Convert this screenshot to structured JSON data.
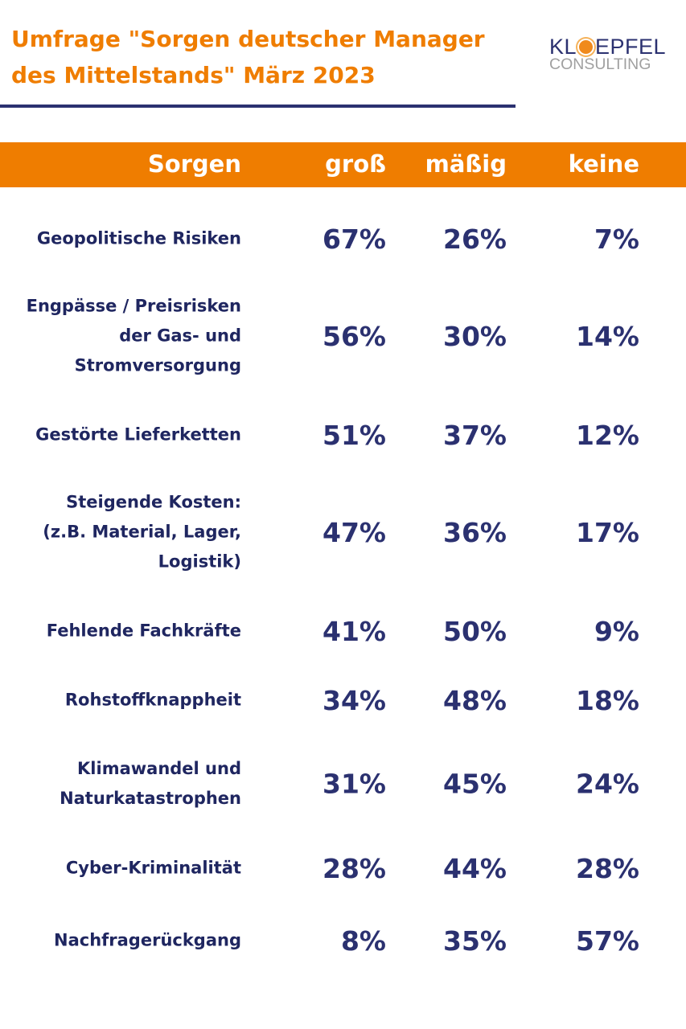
{
  "title": "Umfrage \"Sorgen deutscher Manager des Mittelstands\" März 2023",
  "logo": {
    "line1": "KLOEPFEL",
    "line2": "CONSULTING"
  },
  "colors": {
    "accent": "#ef7d00",
    "navy": "#2b3170"
  },
  "chart_data": {
    "type": "table",
    "columns": [
      "Sorgen",
      "groß",
      "mäßig",
      "keine"
    ],
    "rows": [
      {
        "label": "Geopolitische Risiken",
        "values": [
          "67%",
          "26%",
          "7%"
        ]
      },
      {
        "label": "Engpässe / Preisrisken der Gas- und Stromversorgung",
        "values": [
          "56%",
          "30%",
          "14%"
        ]
      },
      {
        "label": "Gestörte Lieferketten",
        "values": [
          "51%",
          "37%",
          "12%"
        ]
      },
      {
        "label": "Steigende Kosten: (z.B. Material, Lager, Logistik)",
        "values": [
          "47%",
          "36%",
          "17%"
        ]
      },
      {
        "label": "Fehlende Fachkräfte",
        "values": [
          "41%",
          "50%",
          "9%"
        ]
      },
      {
        "label": "Rohstoffknappheit",
        "values": [
          "34%",
          "48%",
          "18%"
        ]
      },
      {
        "label": "Klimawandel und Naturkatastrophen",
        "values": [
          "31%",
          "45%",
          "24%"
        ]
      },
      {
        "label": "Cyber-Kriminalität",
        "values": [
          "28%",
          "44%",
          "28%"
        ]
      },
      {
        "label": "Nachfragerückgang",
        "values": [
          "8%",
          "35%",
          "57%"
        ]
      }
    ]
  }
}
